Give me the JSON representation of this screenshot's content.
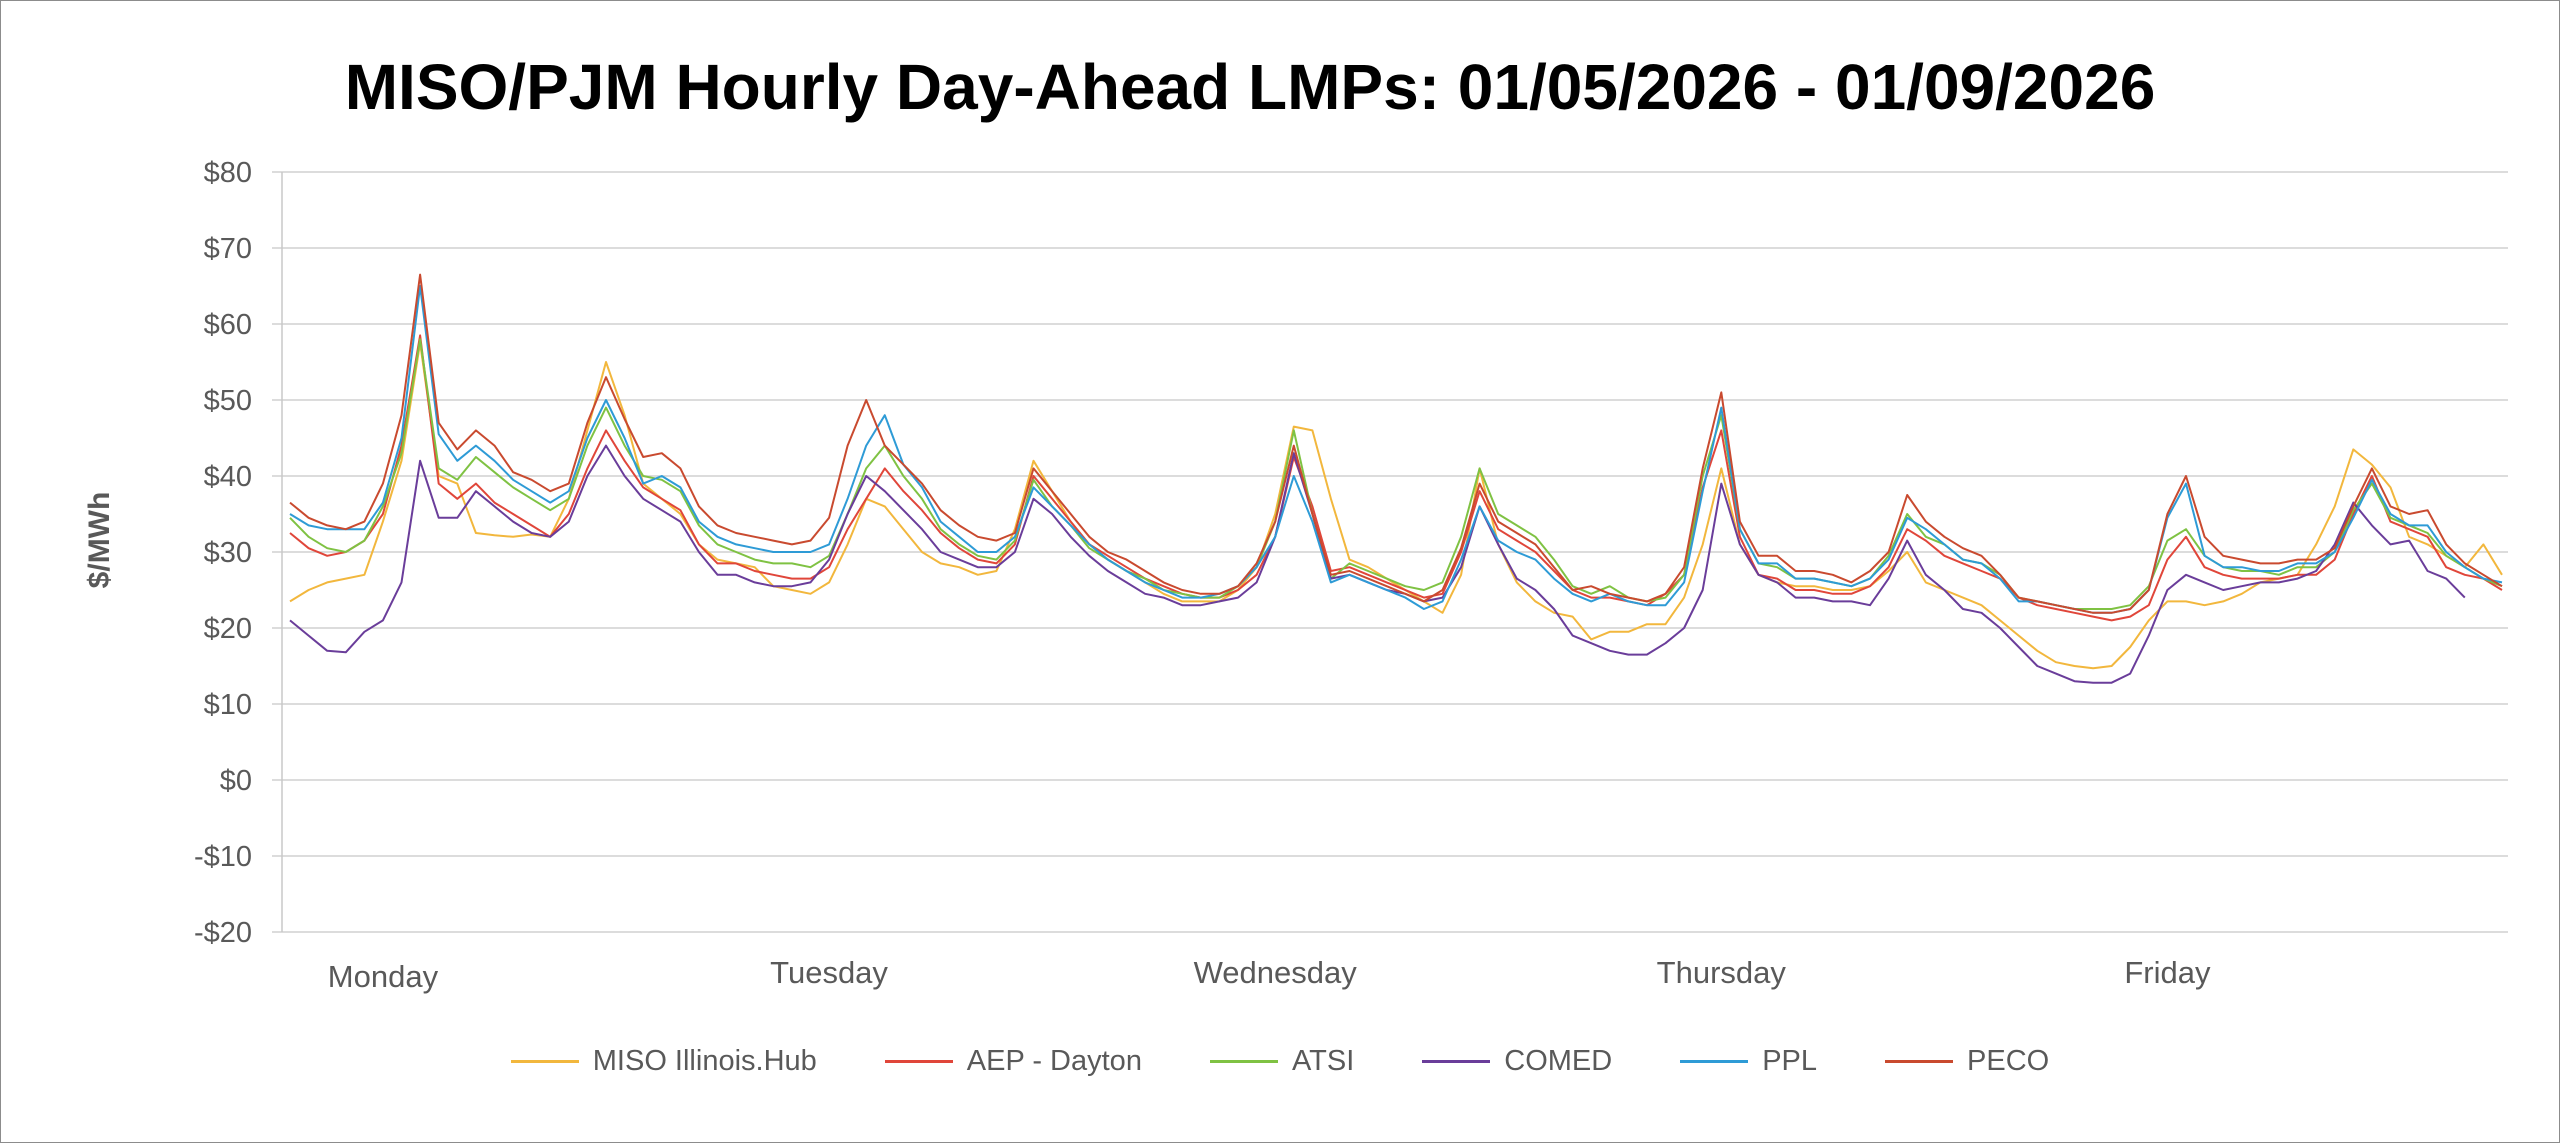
{
  "chart_data": {
    "type": "line",
    "title": "MISO/PJM Hourly Day-Ahead LMPs: 01/05/2026 - 01/09/2026",
    "ylabel": "$/MWh",
    "xlabel": "",
    "ylim": [
      -20,
      80
    ],
    "y_ticks": [
      80,
      70,
      60,
      50,
      40,
      30,
      20,
      10,
      0,
      -10,
      -20
    ],
    "y_tick_labels": [
      "$80",
      "$70",
      "$60",
      "$50",
      "$40",
      "$30",
      "$20",
      "$10",
      "$0",
      "-$10",
      "-$20"
    ],
    "grid": true,
    "legend_position": "bottom",
    "x_count": 120,
    "day_labels": [
      {
        "label": "Monday",
        "hour": 5
      },
      {
        "label": "Tuesday",
        "hour": 29
      },
      {
        "label": "Wednesday",
        "hour": 53
      },
      {
        "label": "Thursday",
        "hour": 77
      },
      {
        "label": "Friday",
        "hour": 101
      }
    ],
    "series": [
      {
        "name": "MISO Illinois.Hub",
        "color": "#F2B73D",
        "values": [
          23.5,
          25.0,
          26.0,
          26.5,
          27.0,
          34.0,
          42.0,
          57.5,
          40.0,
          39.0,
          32.5,
          32.2,
          32.0,
          32.3,
          32.0,
          37.0,
          46.0,
          55.0,
          48.0,
          39.0,
          37.0,
          35.0,
          31.0,
          29.0,
          28.5,
          28.0,
          25.5,
          25.0,
          24.5,
          26.0,
          31.0,
          37.0,
          36.0,
          33.0,
          30.0,
          28.5,
          28.0,
          27.0,
          27.5,
          33.0,
          42.0,
          38.0,
          34.0,
          31.0,
          29.0,
          27.5,
          26.0,
          24.5,
          23.5,
          23.5,
          23.5,
          25.0,
          28.0,
          35.0,
          46.5,
          46.0,
          37.0,
          29.0,
          28.0,
          26.5,
          25.0,
          23.5,
          22.0,
          27.0,
          41.0,
          31.0,
          26.0,
          23.5,
          22.0,
          21.5,
          18.5,
          19.5,
          19.5,
          20.5,
          20.5,
          24.0,
          31.0,
          41.0,
          31.0,
          27.0,
          26.0,
          25.5,
          25.5,
          25.0,
          25.0,
          25.5,
          27.5,
          30.0,
          26.0,
          25.0,
          24.0,
          23.0,
          21.0,
          19.0,
          17.0,
          15.5,
          15.0,
          14.7,
          15.0,
          17.5,
          21.0,
          23.5,
          23.5,
          23.0,
          23.5,
          24.5,
          26.0,
          26.5,
          27.0,
          31.0,
          36.0,
          43.5,
          41.5,
          38.5,
          32.0,
          31.0,
          29.5,
          28.0,
          31.0,
          27.0
        ]
      },
      {
        "name": "AEP - Dayton",
        "color": "#E0463A",
        "values": [
          32.5,
          30.5,
          29.5,
          30.0,
          31.5,
          35.0,
          44.0,
          58.5,
          39.0,
          37.0,
          39.0,
          36.5,
          35.0,
          33.5,
          32.0,
          35.0,
          41.0,
          46.0,
          42.0,
          38.5,
          37.0,
          35.5,
          31.0,
          28.5,
          28.5,
          27.5,
          27.0,
          26.5,
          26.5,
          28.0,
          33.0,
          37.0,
          41.0,
          38.0,
          35.5,
          32.5,
          30.5,
          29.0,
          28.5,
          31.0,
          40.0,
          37.0,
          34.0,
          31.0,
          29.5,
          28.0,
          26.5,
          25.5,
          24.5,
          24.0,
          24.0,
          25.0,
          27.0,
          32.0,
          42.5,
          36.0,
          27.5,
          28.0,
          27.0,
          26.0,
          25.0,
          24.0,
          24.5,
          30.0,
          38.0,
          33.0,
          31.5,
          30.0,
          27.5,
          25.0,
          24.0,
          24.0,
          23.5,
          23.0,
          24.5,
          27.0,
          38.5,
          46.0,
          32.0,
          27.0,
          26.5,
          25.0,
          25.0,
          24.5,
          24.5,
          25.5,
          28.0,
          33.0,
          31.5,
          29.5,
          28.5,
          27.5,
          26.5,
          24.0,
          23.0,
          22.5,
          22.0,
          21.5,
          21.0,
          21.5,
          23.0,
          29.0,
          32.0,
          28.0,
          27.0,
          26.5,
          26.5,
          26.5,
          27.0,
          27.0,
          29.0,
          35.0,
          40.0,
          34.0,
          33.0,
          32.0,
          28.0,
          27.0,
          26.5,
          25.0
        ]
      },
      {
        "name": "ATSI",
        "color": "#7FC243",
        "values": [
          34.5,
          32.0,
          30.5,
          30.0,
          31.5,
          36.0,
          43.0,
          58.0,
          41.0,
          39.5,
          42.5,
          40.5,
          38.5,
          37.0,
          35.5,
          37.0,
          44.0,
          49.0,
          44.0,
          40.0,
          39.5,
          38.0,
          33.5,
          31.0,
          30.0,
          29.0,
          28.5,
          28.5,
          28.0,
          29.5,
          35.0,
          41.0,
          44.0,
          40.0,
          37.0,
          33.0,
          31.0,
          29.5,
          29.0,
          31.5,
          39.5,
          36.0,
          33.5,
          30.5,
          29.0,
          27.5,
          26.5,
          25.0,
          24.5,
          24.0,
          24.0,
          25.5,
          28.0,
          34.0,
          46.0,
          35.0,
          26.5,
          28.5,
          27.5,
          26.5,
          25.5,
          25.0,
          26.0,
          32.0,
          41.0,
          35.0,
          33.5,
          32.0,
          29.0,
          25.5,
          24.5,
          25.5,
          24.0,
          23.5,
          24.0,
          27.0,
          40.0,
          48.0,
          33.0,
          28.5,
          28.0,
          26.5,
          26.5,
          26.0,
          25.5,
          26.5,
          29.5,
          35.0,
          32.0,
          31.0,
          29.0,
          28.5,
          27.0,
          24.0,
          23.5,
          23.0,
          22.5,
          22.5,
          22.5,
          23.0,
          25.5,
          31.5,
          33.0,
          29.5,
          28.0,
          27.5,
          27.5,
          27.0,
          28.0,
          28.0,
          30.0,
          35.5,
          39.0,
          34.5,
          33.5,
          32.5,
          29.5,
          28.0,
          26.5,
          25.5
        ]
      },
      {
        "name": "COMED",
        "color": "#6A3D9A",
        "values": [
          21.0,
          19.0,
          17.0,
          16.8,
          19.5,
          21.0,
          26.0,
          42.0,
          34.5,
          34.5,
          38.0,
          36.0,
          34.0,
          32.5,
          32.0,
          34.0,
          40.0,
          44.0,
          40.0,
          37.0,
          35.5,
          34.0,
          30.0,
          27.0,
          27.0,
          26.0,
          25.5,
          25.5,
          26.0,
          29.0,
          35.0,
          40.0,
          38.0,
          35.5,
          33.0,
          30.0,
          29.0,
          28.0,
          28.0,
          30.0,
          37.0,
          35.0,
          32.0,
          29.5,
          27.5,
          26.0,
          24.5,
          24.0,
          23.0,
          23.0,
          23.5,
          24.0,
          26.0,
          32.0,
          43.0,
          35.0,
          26.5,
          27.0,
          26.0,
          25.0,
          24.5,
          23.5,
          24.0,
          28.0,
          36.0,
          31.0,
          26.5,
          25.0,
          22.5,
          19.0,
          18.0,
          17.0,
          16.5,
          16.5,
          18.0,
          20.0,
          25.0,
          39.0,
          31.0,
          27.0,
          26.0,
          24.0,
          24.0,
          23.5,
          23.5,
          23.0,
          26.5,
          31.5,
          27.0,
          25.0,
          22.5,
          22.0,
          20.0,
          17.5,
          15.0,
          14.0,
          13.0,
          12.8,
          12.8,
          14.0,
          19.0,
          25.0,
          27.0,
          26.0,
          25.0,
          25.5,
          26.0,
          26.0,
          26.5,
          27.5,
          31.0,
          36.5,
          33.5,
          31.0,
          31.5,
          27.5,
          26.5,
          24.0
        ]
      },
      {
        "name": "PPL",
        "color": "#2E9BD6",
        "values": [
          35.0,
          33.5,
          33.0,
          33.0,
          33.0,
          36.5,
          45.0,
          65.0,
          45.5,
          42.0,
          44.0,
          42.0,
          39.5,
          38.0,
          36.5,
          38.0,
          45.0,
          50.0,
          45.0,
          39.0,
          40.0,
          38.5,
          34.0,
          32.0,
          31.0,
          30.5,
          30.0,
          30.0,
          30.0,
          31.0,
          37.0,
          44.0,
          48.0,
          41.5,
          38.5,
          34.0,
          32.0,
          30.0,
          30.0,
          32.0,
          38.5,
          36.0,
          33.5,
          31.0,
          29.0,
          27.5,
          26.0,
          25.0,
          24.0,
          24.0,
          24.5,
          25.5,
          28.0,
          32.0,
          40.0,
          34.0,
          26.0,
          27.0,
          26.0,
          25.0,
          24.0,
          22.5,
          23.5,
          29.0,
          36.0,
          31.5,
          30.0,
          29.0,
          26.5,
          24.5,
          23.5,
          24.5,
          23.5,
          23.0,
          23.0,
          26.0,
          38.0,
          49.0,
          33.0,
          28.5,
          28.5,
          26.5,
          26.5,
          26.0,
          25.5,
          26.5,
          29.0,
          34.5,
          33.0,
          31.0,
          29.0,
          28.5,
          26.5,
          23.5,
          23.5,
          23.0,
          22.5,
          22.0,
          22.0,
          22.5,
          25.0,
          34.5,
          39.0,
          29.5,
          28.0,
          28.0,
          27.5,
          27.5,
          28.5,
          28.5,
          30.0,
          34.5,
          39.5,
          35.0,
          33.5,
          33.5,
          30.0,
          28.0,
          26.5,
          26.0
        ]
      },
      {
        "name": "PECO",
        "color": "#C94A2F",
        "values": [
          36.5,
          34.5,
          33.5,
          33.0,
          34.0,
          39.0,
          48.0,
          66.5,
          47.0,
          43.5,
          46.0,
          44.0,
          40.5,
          39.5,
          38.0,
          39.0,
          47.0,
          53.0,
          47.5,
          42.5,
          43.0,
          41.0,
          36.0,
          33.5,
          32.5,
          32.0,
          31.5,
          31.0,
          31.5,
          34.5,
          44.0,
          50.0,
          44.0,
          41.5,
          39.0,
          35.5,
          33.5,
          32.0,
          31.5,
          32.5,
          41.0,
          38.0,
          35.0,
          32.0,
          30.0,
          29.0,
          27.5,
          26.0,
          25.0,
          24.5,
          24.5,
          25.5,
          28.5,
          34.0,
          44.0,
          35.0,
          27.0,
          27.5,
          26.5,
          25.5,
          24.5,
          23.5,
          25.0,
          30.5,
          39.0,
          34.0,
          32.5,
          31.0,
          28.0,
          25.0,
          25.5,
          24.5,
          24.0,
          23.5,
          24.5,
          28.0,
          41.0,
          51.0,
          34.0,
          29.5,
          29.5,
          27.5,
          27.5,
          27.0,
          26.0,
          27.5,
          30.0,
          37.5,
          34.0,
          32.0,
          30.5,
          29.5,
          27.0,
          24.0,
          23.5,
          23.0,
          22.5,
          22.0,
          22.0,
          22.5,
          25.0,
          35.0,
          40.0,
          32.0,
          29.5,
          29.0,
          28.5,
          28.5,
          29.0,
          29.0,
          30.5,
          36.0,
          41.0,
          36.0,
          35.0,
          35.5,
          31.0,
          28.5,
          27.0,
          25.5
        ]
      }
    ]
  }
}
